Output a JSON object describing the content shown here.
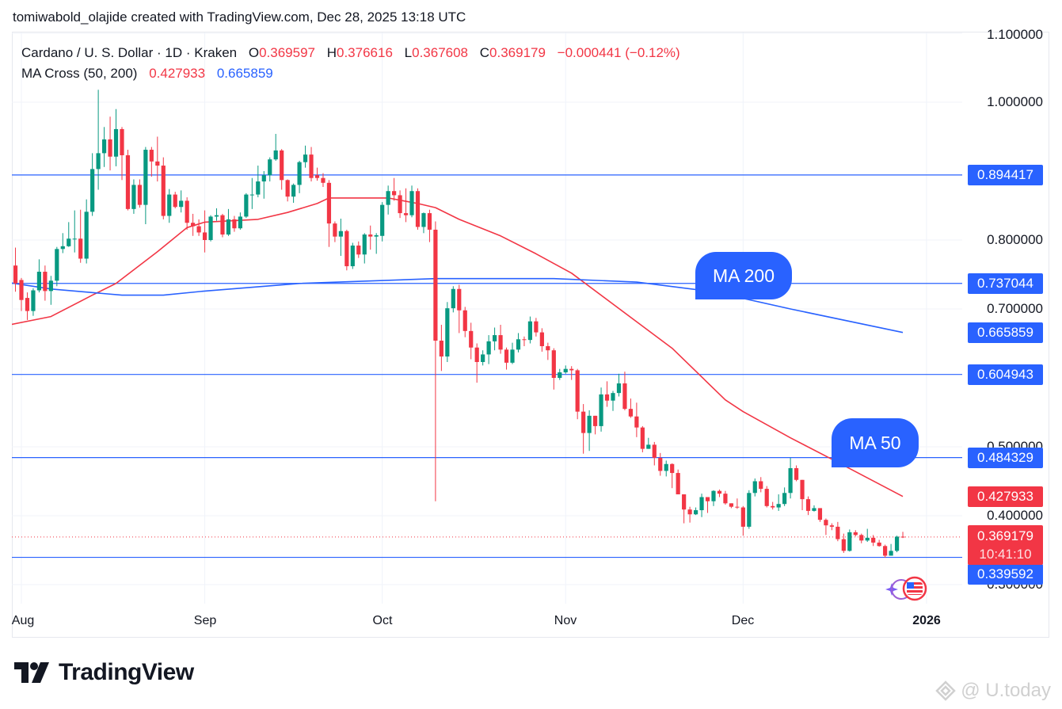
{
  "credit": "tomiwabold_olajide created with TradingView.com, Dec 28, 2025 13:18 UTC",
  "legend": {
    "symbol": "Cardano / U. S. Dollar · 1D · Kraken",
    "o_label": "O",
    "o": "0.369597",
    "h_label": "H",
    "h": "0.376616",
    "l_label": "L",
    "l": "0.367608",
    "c_label": "C",
    "c": "0.369179",
    "change": "−0.000441 (−0.12%)",
    "indicator": "MA Cross (50, 200)",
    "ma50": "0.427933",
    "ma200": "0.665859"
  },
  "colors": {
    "up": "#089981",
    "down": "#f23645",
    "ma50": "#f23645",
    "ma200": "#2962ff",
    "level": "#2962ff",
    "grid": "#f0f3fa"
  },
  "chart_data": {
    "type": "candlestick",
    "title": "Cardano / U. S. Dollar · 1D · Kraken",
    "ylim": [
      0.28,
      1.11
    ],
    "y_ticks": [
      "1.100000",
      "1.000000",
      "0.800000",
      "0.700000",
      "0.500000",
      "0.400000",
      "0.300000"
    ],
    "x_ticks": [
      "Aug",
      "Sep",
      "Oct",
      "Nov",
      "Dec",
      "2026"
    ],
    "x_tick_dates": [
      "2025-08-01",
      "2025-09-01",
      "2025-10-01",
      "2025-11-01",
      "2025-12-01",
      "2026-01-01"
    ],
    "grid": true,
    "candles_fields": [
      "date",
      "open",
      "high",
      "low",
      "close"
    ],
    "candles": [
      [
        "2025-07-31",
        0.763,
        0.789,
        0.725,
        0.737
      ],
      [
        "2025-08-01",
        0.742,
        0.745,
        0.697,
        0.713
      ],
      [
        "2025-08-02",
        0.716,
        0.724,
        0.684,
        0.697
      ],
      [
        "2025-08-03",
        0.697,
        0.73,
        0.69,
        0.727
      ],
      [
        "2025-08-04",
        0.727,
        0.772,
        0.724,
        0.754
      ],
      [
        "2025-08-05",
        0.754,
        0.763,
        0.712,
        0.726
      ],
      [
        "2025-08-06",
        0.726,
        0.748,
        0.706,
        0.741
      ],
      [
        "2025-08-07",
        0.741,
        0.79,
        0.733,
        0.787
      ],
      [
        "2025-08-08",
        0.787,
        0.81,
        0.781,
        0.791
      ],
      [
        "2025-08-09",
        0.791,
        0.826,
        0.79,
        0.802
      ],
      [
        "2025-08-10",
        0.802,
        0.843,
        0.782,
        0.802
      ],
      [
        "2025-08-11",
        0.802,
        0.844,
        0.767,
        0.773
      ],
      [
        "2025-08-12",
        0.773,
        0.859,
        0.766,
        0.841
      ],
      [
        "2025-08-13",
        0.841,
        0.926,
        0.835,
        0.903
      ],
      [
        "2025-08-14",
        0.903,
        1.018,
        0.873,
        0.926
      ],
      [
        "2025-08-15",
        0.926,
        0.964,
        0.906,
        0.946
      ],
      [
        "2025-08-16",
        0.946,
        0.979,
        0.901,
        0.921
      ],
      [
        "2025-08-17",
        0.921,
        0.99,
        0.907,
        0.961
      ],
      [
        "2025-08-18",
        0.961,
        0.964,
        0.887,
        0.923
      ],
      [
        "2025-08-19",
        0.923,
        0.931,
        0.843,
        0.845
      ],
      [
        "2025-08-20",
        0.845,
        0.888,
        0.838,
        0.88
      ],
      [
        "2025-08-21",
        0.88,
        0.888,
        0.847,
        0.851
      ],
      [
        "2025-08-22",
        0.851,
        0.935,
        0.823,
        0.931
      ],
      [
        "2025-08-23",
        0.931,
        0.935,
        0.892,
        0.914
      ],
      [
        "2025-08-24",
        0.914,
        0.95,
        0.885,
        0.908
      ],
      [
        "2025-08-25",
        0.908,
        0.92,
        0.83,
        0.835
      ],
      [
        "2025-08-26",
        0.835,
        0.874,
        0.825,
        0.866
      ],
      [
        "2025-08-27",
        0.866,
        0.87,
        0.846,
        0.848
      ],
      [
        "2025-08-28",
        0.848,
        0.872,
        0.84,
        0.857
      ],
      [
        "2025-08-29",
        0.857,
        0.862,
        0.815,
        0.825
      ],
      [
        "2025-08-30",
        0.825,
        0.838,
        0.806,
        0.82
      ],
      [
        "2025-08-31",
        0.82,
        0.83,
        0.806,
        0.811
      ],
      [
        "2025-09-01",
        0.811,
        0.843,
        0.782,
        0.8
      ],
      [
        "2025-09-02",
        0.8,
        0.836,
        0.798,
        0.834
      ],
      [
        "2025-09-03",
        0.834,
        0.846,
        0.828,
        0.836
      ],
      [
        "2025-09-04",
        0.836,
        0.838,
        0.804,
        0.808
      ],
      [
        "2025-09-05",
        0.808,
        0.845,
        0.806,
        0.83
      ],
      [
        "2025-09-06",
        0.83,
        0.835,
        0.812,
        0.817
      ],
      [
        "2025-09-07",
        0.817,
        0.84,
        0.815,
        0.834
      ],
      [
        "2025-09-08",
        0.834,
        0.868,
        0.832,
        0.866
      ],
      [
        "2025-09-09",
        0.866,
        0.89,
        0.845,
        0.866
      ],
      [
        "2025-09-10",
        0.866,
        0.908,
        0.862,
        0.885
      ],
      [
        "2025-09-11",
        0.885,
        0.9,
        0.86,
        0.894
      ],
      [
        "2025-09-12",
        0.894,
        0.92,
        0.885,
        0.917
      ],
      [
        "2025-09-13",
        0.917,
        0.954,
        0.915,
        0.93
      ],
      [
        "2025-09-14",
        0.93,
        0.932,
        0.873,
        0.887
      ],
      [
        "2025-09-15",
        0.887,
        0.888,
        0.856,
        0.863
      ],
      [
        "2025-09-16",
        0.863,
        0.882,
        0.854,
        0.88
      ],
      [
        "2025-09-17",
        0.88,
        0.915,
        0.868,
        0.913
      ],
      [
        "2025-09-18",
        0.913,
        0.937,
        0.905,
        0.924
      ],
      [
        "2025-09-19",
        0.924,
        0.935,
        0.885,
        0.89
      ],
      [
        "2025-09-20",
        0.894,
        0.905,
        0.886,
        0.89
      ],
      [
        "2025-09-21",
        0.89,
        0.897,
        0.877,
        0.883
      ],
      [
        "2025-09-22",
        0.883,
        0.887,
        0.79,
        0.824
      ],
      [
        "2025-09-23",
        0.824,
        0.827,
        0.797,
        0.805
      ],
      [
        "2025-09-24",
        0.805,
        0.831,
        0.777,
        0.813
      ],
      [
        "2025-09-25",
        0.813,
        0.815,
        0.756,
        0.762
      ],
      [
        "2025-09-26",
        0.762,
        0.796,
        0.758,
        0.792
      ],
      [
        "2025-09-27",
        0.792,
        0.798,
        0.774,
        0.779
      ],
      [
        "2025-09-28",
        0.779,
        0.81,
        0.766,
        0.808
      ],
      [
        "2025-09-29",
        0.808,
        0.821,
        0.786,
        0.805
      ],
      [
        "2025-09-30",
        0.805,
        0.81,
        0.78,
        0.807
      ],
      [
        "2025-10-01",
        0.806,
        0.855,
        0.798,
        0.851
      ],
      [
        "2025-10-02",
        0.851,
        0.879,
        0.837,
        0.871
      ],
      [
        "2025-10-03",
        0.871,
        0.89,
        0.857,
        0.865
      ],
      [
        "2025-10-04",
        0.865,
        0.872,
        0.832,
        0.839
      ],
      [
        "2025-10-05",
        0.839,
        0.875,
        0.826,
        0.836
      ],
      [
        "2025-10-06",
        0.836,
        0.879,
        0.833,
        0.871
      ],
      [
        "2025-10-07",
        0.871,
        0.875,
        0.815,
        0.819
      ],
      [
        "2025-10-08",
        0.819,
        0.84,
        0.81,
        0.839
      ],
      [
        "2025-10-09",
        0.839,
        0.844,
        0.797,
        0.815
      ],
      [
        "2025-10-10",
        0.815,
        0.827,
        0.421,
        0.654
      ],
      [
        "2025-10-11",
        0.654,
        0.677,
        0.61,
        0.631
      ],
      [
        "2025-10-12",
        0.631,
        0.71,
        0.623,
        0.701
      ],
      [
        "2025-10-13",
        0.701,
        0.733,
        0.695,
        0.729
      ],
      [
        "2025-10-14",
        0.729,
        0.735,
        0.665,
        0.698
      ],
      [
        "2025-10-15",
        0.698,
        0.703,
        0.659,
        0.668
      ],
      [
        "2025-10-16",
        0.668,
        0.68,
        0.627,
        0.644
      ],
      [
        "2025-10-17",
        0.644,
        0.65,
        0.593,
        0.623
      ],
      [
        "2025-10-18",
        0.623,
        0.64,
        0.618,
        0.634
      ],
      [
        "2025-10-19",
        0.634,
        0.662,
        0.62,
        0.653
      ],
      [
        "2025-10-20",
        0.653,
        0.673,
        0.64,
        0.662
      ],
      [
        "2025-10-21",
        0.662,
        0.677,
        0.635,
        0.641
      ],
      [
        "2025-10-22",
        0.641,
        0.644,
        0.612,
        0.622
      ],
      [
        "2025-10-23",
        0.622,
        0.651,
        0.62,
        0.641
      ],
      [
        "2025-10-24",
        0.641,
        0.665,
        0.637,
        0.656
      ],
      [
        "2025-10-25",
        0.656,
        0.66,
        0.646,
        0.655
      ],
      [
        "2025-10-26",
        0.655,
        0.689,
        0.65,
        0.682
      ],
      [
        "2025-10-27",
        0.682,
        0.687,
        0.66,
        0.666
      ],
      [
        "2025-10-28",
        0.666,
        0.672,
        0.638,
        0.646
      ],
      [
        "2025-10-29",
        0.646,
        0.651,
        0.626,
        0.64
      ],
      [
        "2025-10-30",
        0.64,
        0.643,
        0.583,
        0.6
      ],
      [
        "2025-10-31",
        0.6,
        0.613,
        0.597,
        0.608
      ],
      [
        "2025-11-01",
        0.608,
        0.618,
        0.606,
        0.613
      ],
      [
        "2025-11-02",
        0.613,
        0.617,
        0.597,
        0.611
      ],
      [
        "2025-11-03",
        0.611,
        0.613,
        0.54,
        0.551
      ],
      [
        "2025-11-04",
        0.551,
        0.562,
        0.49,
        0.52
      ],
      [
        "2025-11-05",
        0.52,
        0.553,
        0.494,
        0.545
      ],
      [
        "2025-11-06",
        0.545,
        0.545,
        0.518,
        0.53
      ],
      [
        "2025-11-07",
        0.53,
        0.586,
        0.522,
        0.576
      ],
      [
        "2025-11-08",
        0.576,
        0.595,
        0.558,
        0.567
      ],
      [
        "2025-11-09",
        0.567,
        0.581,
        0.552,
        0.578
      ],
      [
        "2025-11-10",
        0.578,
        0.606,
        0.573,
        0.592
      ],
      [
        "2025-11-11",
        0.592,
        0.609,
        0.553,
        0.555
      ],
      [
        "2025-11-12",
        0.555,
        0.57,
        0.542,
        0.544
      ],
      [
        "2025-11-13",
        0.544,
        0.564,
        0.514,
        0.528
      ],
      [
        "2025-11-14",
        0.528,
        0.53,
        0.492,
        0.497
      ],
      [
        "2025-11-15",
        0.497,
        0.513,
        0.497,
        0.503
      ],
      [
        "2025-11-16",
        0.503,
        0.507,
        0.473,
        0.484
      ],
      [
        "2025-11-17",
        0.484,
        0.491,
        0.458,
        0.465
      ],
      [
        "2025-11-18",
        0.465,
        0.48,
        0.457,
        0.475
      ],
      [
        "2025-11-19",
        0.475,
        0.476,
        0.44,
        0.462
      ],
      [
        "2025-11-20",
        0.462,
        0.467,
        0.431,
        0.431
      ],
      [
        "2025-11-21",
        0.431,
        0.431,
        0.389,
        0.409
      ],
      [
        "2025-11-22",
        0.409,
        0.413,
        0.39,
        0.402
      ],
      [
        "2025-11-23",
        0.402,
        0.412,
        0.401,
        0.408
      ],
      [
        "2025-11-24",
        0.408,
        0.432,
        0.398,
        0.427
      ],
      [
        "2025-11-25",
        0.427,
        0.427,
        0.404,
        0.421
      ],
      [
        "2025-11-26",
        0.421,
        0.437,
        0.414,
        0.436
      ],
      [
        "2025-11-27",
        0.436,
        0.438,
        0.427,
        0.432
      ],
      [
        "2025-11-28",
        0.432,
        0.436,
        0.416,
        0.418
      ],
      [
        "2025-11-29",
        0.418,
        0.418,
        0.411,
        0.413
      ],
      [
        "2025-11-30",
        0.413,
        0.425,
        0.41,
        0.412
      ],
      [
        "2025-12-01",
        0.412,
        0.414,
        0.371,
        0.384
      ],
      [
        "2025-12-02",
        0.384,
        0.437,
        0.381,
        0.433
      ],
      [
        "2025-12-03",
        0.433,
        0.454,
        0.428,
        0.45
      ],
      [
        "2025-12-04",
        0.45,
        0.456,
        0.434,
        0.439
      ],
      [
        "2025-12-05",
        0.439,
        0.443,
        0.412,
        0.414
      ],
      [
        "2025-12-06",
        0.414,
        0.42,
        0.409,
        0.412
      ],
      [
        "2025-12-07",
        0.412,
        0.431,
        0.407,
        0.417
      ],
      [
        "2025-12-08",
        0.417,
        0.441,
        0.414,
        0.433
      ],
      [
        "2025-12-09",
        0.433,
        0.484,
        0.425,
        0.469
      ],
      [
        "2025-12-10",
        0.469,
        0.473,
        0.45,
        0.452
      ],
      [
        "2025-12-11",
        0.452,
        0.452,
        0.408,
        0.424
      ],
      [
        "2025-12-12",
        0.424,
        0.428,
        0.401,
        0.407
      ],
      [
        "2025-12-13",
        0.407,
        0.415,
        0.406,
        0.411
      ],
      [
        "2025-12-14",
        0.411,
        0.411,
        0.391,
        0.394
      ],
      [
        "2025-12-15",
        0.394,
        0.396,
        0.372,
        0.386
      ],
      [
        "2025-12-16",
        0.386,
        0.389,
        0.379,
        0.384
      ],
      [
        "2025-12-17",
        0.384,
        0.391,
        0.363,
        0.366
      ],
      [
        "2025-12-18",
        0.366,
        0.374,
        0.346,
        0.349
      ],
      [
        "2025-12-19",
        0.349,
        0.38,
        0.348,
        0.376
      ],
      [
        "2025-12-20",
        0.376,
        0.379,
        0.37,
        0.372
      ],
      [
        "2025-12-21",
        0.372,
        0.374,
        0.36,
        0.364
      ],
      [
        "2025-12-22",
        0.364,
        0.381,
        0.362,
        0.368
      ],
      [
        "2025-12-23",
        0.368,
        0.372,
        0.356,
        0.361
      ],
      [
        "2025-12-24",
        0.361,
        0.365,
        0.355,
        0.356
      ],
      [
        "2025-12-25",
        0.356,
        0.358,
        0.339,
        0.342
      ],
      [
        "2025-12-26",
        0.342,
        0.359,
        0.342,
        0.349
      ],
      [
        "2025-12-27",
        0.349,
        0.371,
        0.347,
        0.3696
      ],
      [
        "2025-12-28",
        0.369597,
        0.376616,
        0.367608,
        0.369179
      ]
    ],
    "series": [
      {
        "name": "MA 50",
        "color": "#f23645",
        "points": [
          [
            "2025-07-30",
            0.677
          ],
          [
            "2025-08-06",
            0.689
          ],
          [
            "2025-08-13",
            0.72
          ],
          [
            "2025-08-17",
            0.737
          ],
          [
            "2025-08-24",
            0.783
          ],
          [
            "2025-08-29",
            0.818
          ],
          [
            "2025-09-01",
            0.826
          ],
          [
            "2025-09-10",
            0.83
          ],
          [
            "2025-09-15",
            0.84
          ],
          [
            "2025-09-20",
            0.853
          ],
          [
            "2025-09-22",
            0.861
          ],
          [
            "2025-09-27",
            0.861
          ],
          [
            "2025-10-02",
            0.861
          ],
          [
            "2025-10-07",
            0.853
          ],
          [
            "2025-10-10",
            0.847
          ],
          [
            "2025-10-14",
            0.83
          ],
          [
            "2025-10-21",
            0.806
          ],
          [
            "2025-10-27",
            0.78
          ],
          [
            "2025-11-02",
            0.752
          ],
          [
            "2025-11-19",
            0.643
          ],
          [
            "2025-11-28",
            0.568
          ],
          [
            "2025-12-01",
            0.551
          ],
          [
            "2025-12-09",
            0.513
          ],
          [
            "2025-12-16",
            0.482
          ],
          [
            "2025-12-28",
            0.427933
          ]
        ]
      },
      {
        "name": "MA 200",
        "color": "#2962ff",
        "points": [
          [
            "2025-07-30",
            0.738
          ],
          [
            "2025-08-06",
            0.729
          ],
          [
            "2025-08-18",
            0.72
          ],
          [
            "2025-08-25",
            0.72
          ],
          [
            "2025-09-01",
            0.726
          ],
          [
            "2025-09-17",
            0.737
          ],
          [
            "2025-10-10",
            0.744
          ],
          [
            "2025-10-30",
            0.744
          ],
          [
            "2025-11-13",
            0.739
          ],
          [
            "2025-11-26",
            0.725
          ],
          [
            "2025-12-09",
            0.7
          ],
          [
            "2025-12-28",
            0.665859
          ]
        ]
      }
    ],
    "horizontal_levels": [
      "0.894417",
      "0.737044",
      "0.604943",
      "0.484329",
      "0.339592"
    ],
    "last_price": "0.369179",
    "countdown": "10:41:10",
    "ma50_label": "0.427933",
    "ma200_label": "0.665859",
    "annotations": [
      "MA 200",
      "MA 50"
    ]
  },
  "branding": {
    "logo_text": "TradingView",
    "watermark": "@ U.today"
  }
}
